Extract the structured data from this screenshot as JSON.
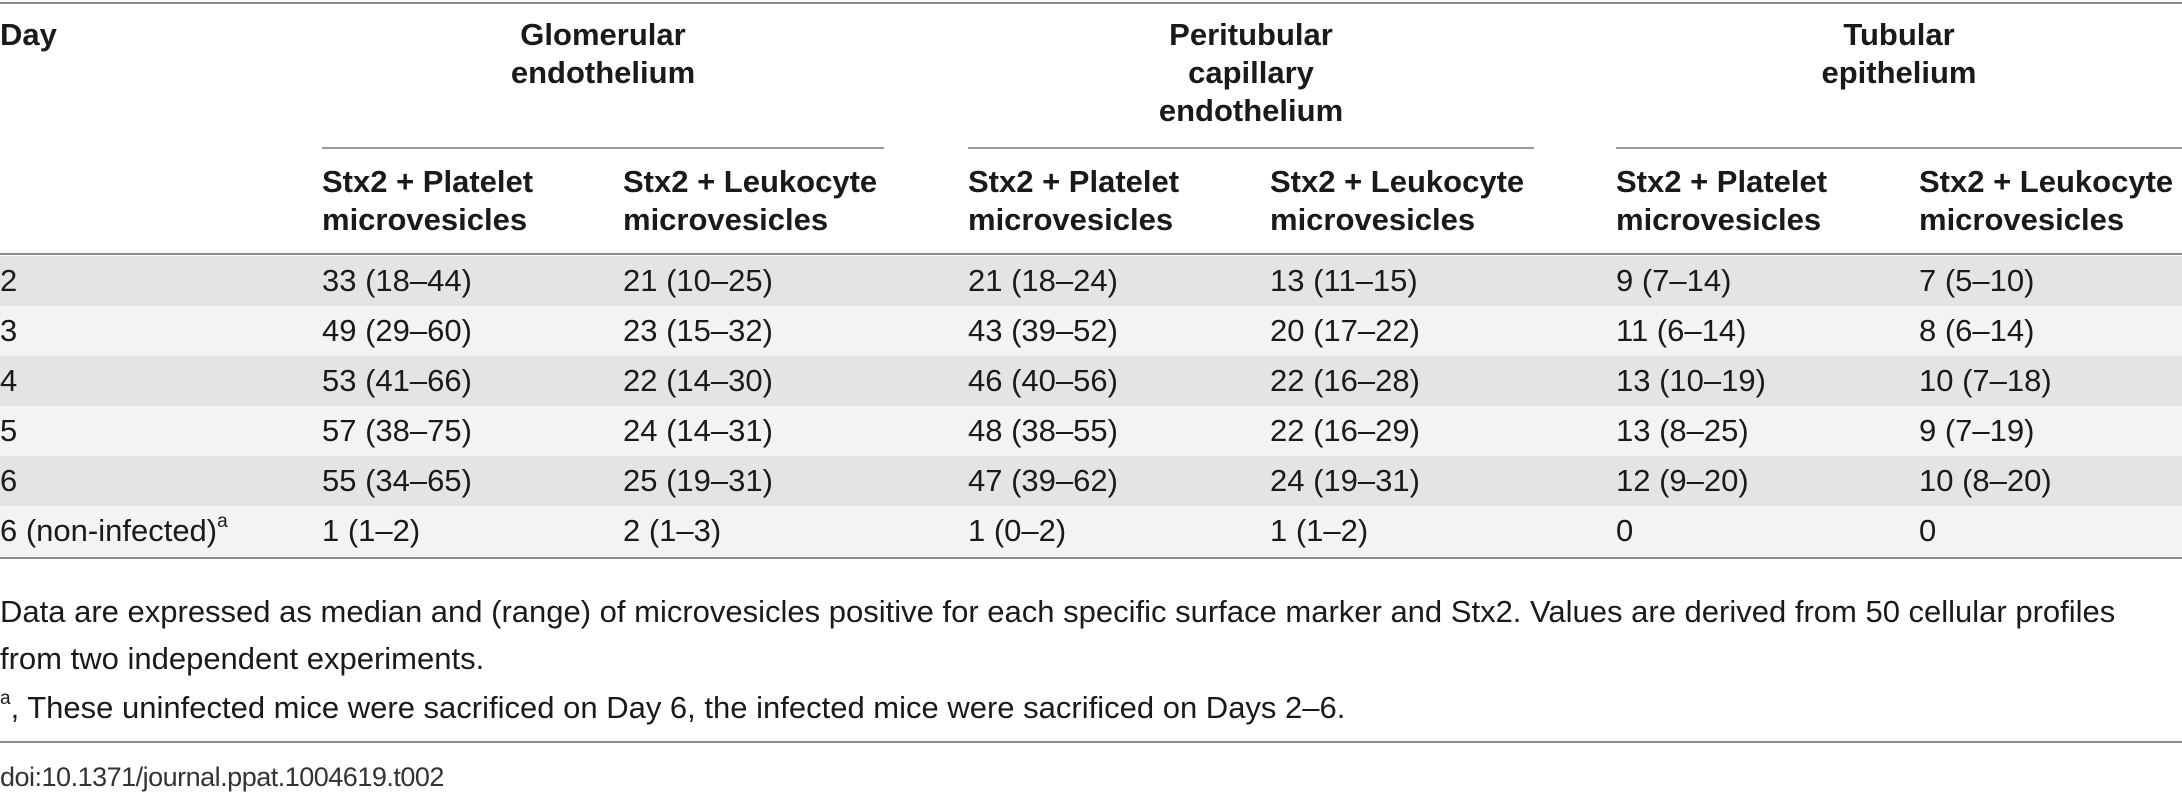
{
  "table": {
    "day_header": "Day",
    "groups": [
      {
        "line1": "Glomerular",
        "line2": "endothelium",
        "line3": ""
      },
      {
        "line1": "Peritubular",
        "line2": "capillary",
        "line3": "endothelium"
      },
      {
        "line1": "Tubular",
        "line2": "epithelium",
        "line3": ""
      }
    ],
    "subheaders": [
      {
        "line1": "Stx2 + Platelet",
        "line2": "microvesicles"
      },
      {
        "line1": "Stx2 + Leukocyte",
        "line2": "microvesicles"
      },
      {
        "line1": "Stx2 + Platelet",
        "line2": "microvesicles"
      },
      {
        "line1": "Stx2 + Leukocyte",
        "line2": "microvesicles"
      },
      {
        "line1": "Stx2 + Platelet",
        "line2": "microvesicles"
      },
      {
        "line1": "Stx2 + Leukocyte",
        "line2": "microvesicles"
      }
    ],
    "rows": [
      {
        "day": "2",
        "sup": "",
        "values": [
          "33 (18–44)",
          "21 (10–25)",
          "21 (18–24)",
          "13 (11–15)",
          "9 (7–14)",
          "7 (5–10)"
        ]
      },
      {
        "day": "3",
        "sup": "",
        "values": [
          "49 (29–60)",
          "23 (15–32)",
          "43 (39–52)",
          "20 (17–22)",
          "11 (6–14)",
          "8 (6–14)"
        ]
      },
      {
        "day": "4",
        "sup": "",
        "values": [
          "53 (41–66)",
          "22 (14–30)",
          "46 (40–56)",
          "22 (16–28)",
          "13 (10–19)",
          "10 (7–18)"
        ]
      },
      {
        "day": "5",
        "sup": "",
        "values": [
          "57 (38–75)",
          "24 (14–31)",
          "48 (38–55)",
          "22 (16–29)",
          "13 (8–25)",
          "9 (7–19)"
        ]
      },
      {
        "day": "6",
        "sup": "",
        "values": [
          "55 (34–65)",
          "25 (19–31)",
          "47 (39–62)",
          "24 (19–31)",
          "12 (9–20)",
          "10 (8–20)"
        ]
      },
      {
        "day": "6 (non-infected)",
        "sup": "a",
        "values": [
          "1 (1–2)",
          "2 (1–3)",
          "1 (0–2)",
          "1 (1–2)",
          "0",
          "0"
        ]
      }
    ]
  },
  "notes": {
    "main": "Data are expressed as median and (range) of microvesicles positive for each specific surface marker and Stx2. Values are derived from 50 cellular profiles from two independent experiments.",
    "footnote_mark": "a",
    "footnote_text": ", These uninfected mice were sacrificed on Day 6, the infected mice were sacrificed on Days 2–6."
  },
  "doi": "doi:10.1371/journal.ppat.1004619.t002"
}
